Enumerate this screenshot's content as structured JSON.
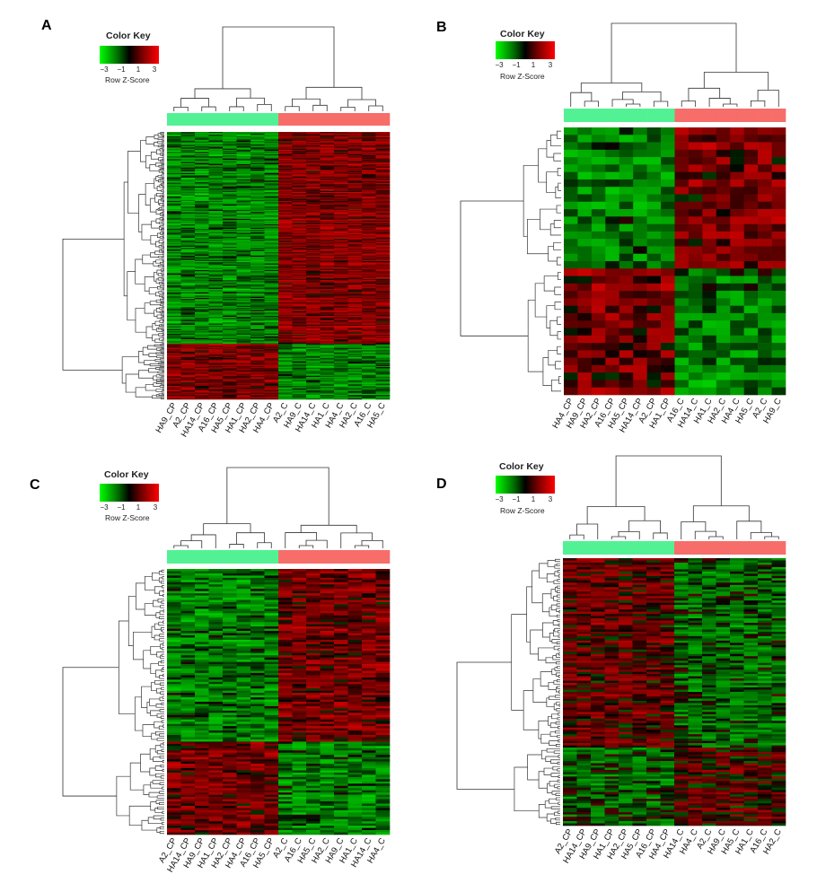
{
  "colors": {
    "cp_group": "#52f294",
    "c_group": "#f76d6a",
    "low": "#00ff00",
    "mid": "#000000",
    "high": "#ff0000"
  },
  "color_key": {
    "title": "Color Key",
    "ticks": [
      "−3",
      "−1",
      "1",
      "3"
    ],
    "xlabel": "Row Z-Score"
  },
  "chart_data": [
    {
      "type": "heatmap",
      "panel": "A",
      "n_rows": 240,
      "columns": [
        "HA9_CP",
        "A2_CP",
        "HA14_CP",
        "A16_CP",
        "HA5_CP",
        "HA1_CP",
        "HA2_CP",
        "HA4_CP",
        "A2_C",
        "HA9_C",
        "HA14_C",
        "HA1_C",
        "HA4_C",
        "HA2_C",
        "A16_C",
        "HA5_C"
      ],
      "column_groups": [
        "CP",
        "CP",
        "CP",
        "CP",
        "CP",
        "CP",
        "CP",
        "CP",
        "C",
        "C",
        "C",
        "C",
        "C",
        "C",
        "C",
        "C"
      ],
      "row_blocks": [
        {
          "rows": 190,
          "cp_level": -1.0,
          "c_level": 1.0
        },
        {
          "rows": 50,
          "cp_level": 1.0,
          "c_level": -1.0
        }
      ],
      "color_scale": [
        -3,
        3
      ]
    },
    {
      "type": "heatmap",
      "panel": "B",
      "n_rows": 36,
      "columns": [
        "HA4_CP",
        "HA9_CP",
        "HA2_CP",
        "A16_CP",
        "HA5_CP",
        "HA14_CP",
        "A2_CP",
        "HA1_CP",
        "A16_C",
        "HA14_C",
        "HA1_C",
        "HA2_C",
        "HA4_C",
        "HA5_C",
        "A2_C",
        "HA9_C"
      ],
      "column_groups": [
        "CP",
        "CP",
        "CP",
        "CP",
        "CP",
        "CP",
        "CP",
        "CP",
        "C",
        "C",
        "C",
        "C",
        "C",
        "C",
        "C",
        "C"
      ],
      "row_blocks": [
        {
          "rows": 19,
          "cp_level": -0.9,
          "c_level": 0.9
        },
        {
          "rows": 17,
          "cp_level": 0.9,
          "c_level": -0.9
        }
      ],
      "color_scale": [
        -3,
        3
      ]
    },
    {
      "type": "heatmap",
      "panel": "C",
      "n_rows": 120,
      "columns": [
        "A2_CP",
        "HA14_CP",
        "HA9_CP",
        "HA1_CP",
        "HA2_CP",
        "HA4_CP",
        "A16_CP",
        "HA5_CP",
        "A2_C",
        "A16_C",
        "HA5_C",
        "HA2_C",
        "HA9_C",
        "HA1_C",
        "HA14_C",
        "HA4_C"
      ],
      "column_groups": [
        "CP",
        "CP",
        "CP",
        "CP",
        "CP",
        "CP",
        "CP",
        "CP",
        "C",
        "C",
        "C",
        "C",
        "C",
        "C",
        "C",
        "C"
      ],
      "row_blocks": [
        {
          "rows": 78,
          "cp_level": -0.9,
          "c_level": 0.9
        },
        {
          "rows": 42,
          "cp_level": 0.9,
          "c_level": -0.9
        }
      ],
      "color_scale": [
        -3,
        3
      ]
    },
    {
      "type": "heatmap",
      "panel": "D",
      "n_rows": 120,
      "columns": [
        "A2_CP",
        "HA14_CP",
        "HA9_CP",
        "HA1_CP",
        "HA2_CP",
        "HA5_CP",
        "A16_CP",
        "HA4_CP",
        "HA14_C",
        "HA4_C",
        "A2_C",
        "HA9_C",
        "HA5_C",
        "HA1_C",
        "A16_C",
        "HA2_C"
      ],
      "column_groups": [
        "CP",
        "CP",
        "CP",
        "CP",
        "CP",
        "CP",
        "CP",
        "CP",
        "C",
        "C",
        "C",
        "C",
        "C",
        "C",
        "C",
        "C"
      ],
      "row_blocks": [
        {
          "rows": 85,
          "cp_level": 0.6,
          "c_level": -0.6
        },
        {
          "rows": 35,
          "cp_level": -0.5,
          "c_level": 0.5
        }
      ],
      "color_scale": [
        -3,
        3
      ]
    }
  ]
}
